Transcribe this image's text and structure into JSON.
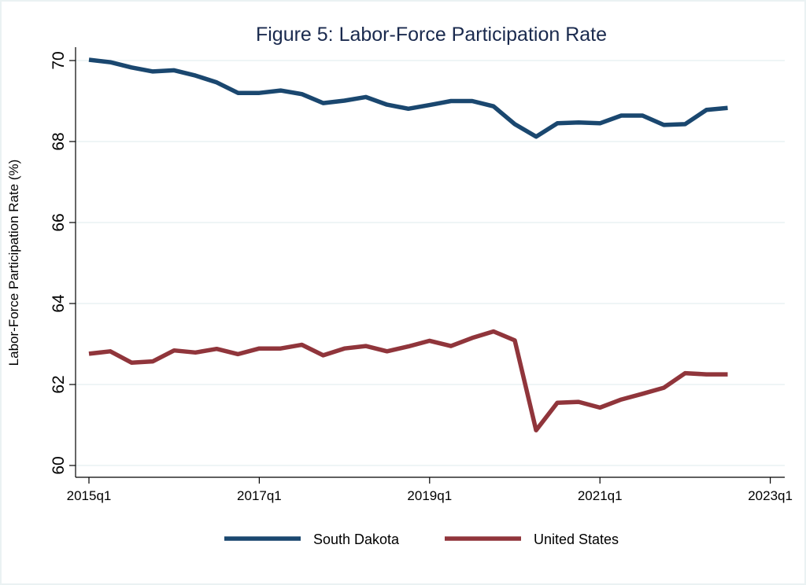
{
  "chart_data": {
    "type": "line",
    "title": "Figure 5: Labor-Force Participation Rate",
    "xlabel": "",
    "ylabel": "Labor-Force Participation Rate (%)",
    "ylim": [
      60,
      70
    ],
    "yticks": [
      60,
      62,
      64,
      66,
      68,
      70
    ],
    "ytick_labels": [
      "60",
      "62",
      "64",
      "66",
      "68",
      "70"
    ],
    "xticks": [
      "2015q1",
      "2017q1",
      "2019q1",
      "2021q1",
      "2023q1"
    ],
    "x_range": [
      "2015q1",
      "2023q1"
    ],
    "grid": true,
    "legend_position": "bottom",
    "x": [
      "2015q1",
      "2015q2",
      "2015q3",
      "2015q4",
      "2016q1",
      "2016q2",
      "2016q3",
      "2016q4",
      "2017q1",
      "2017q2",
      "2017q3",
      "2017q4",
      "2018q1",
      "2018q2",
      "2018q3",
      "2018q4",
      "2019q1",
      "2019q2",
      "2019q3",
      "2019q4",
      "2020q1",
      "2020q2",
      "2020q3",
      "2020q4",
      "2021q1",
      "2021q2",
      "2021q3",
      "2021q4",
      "2022q1",
      "2022q2",
      "2022q3"
    ],
    "series": [
      {
        "name": "South Dakota",
        "color": "#1a476f",
        "values": [
          70.02,
          69.96,
          69.83,
          69.73,
          69.76,
          69.63,
          69.46,
          69.2,
          69.2,
          69.26,
          69.17,
          68.95,
          69.01,
          69.1,
          68.91,
          68.81,
          68.9,
          69.0,
          69.0,
          68.87,
          68.43,
          68.12,
          68.45,
          68.47,
          68.45,
          68.64,
          68.64,
          68.41,
          68.43,
          68.78,
          68.83
        ]
      },
      {
        "name": "United States",
        "color": "#90353b",
        "values": [
          62.76,
          62.82,
          62.54,
          62.57,
          62.84,
          62.79,
          62.88,
          62.75,
          62.89,
          62.89,
          62.98,
          62.72,
          62.89,
          62.95,
          62.82,
          62.94,
          63.08,
          62.95,
          63.15,
          63.31,
          63.09,
          60.87,
          61.55,
          61.57,
          61.43,
          61.63,
          61.77,
          61.92,
          62.28,
          62.25,
          62.25
        ]
      }
    ]
  }
}
